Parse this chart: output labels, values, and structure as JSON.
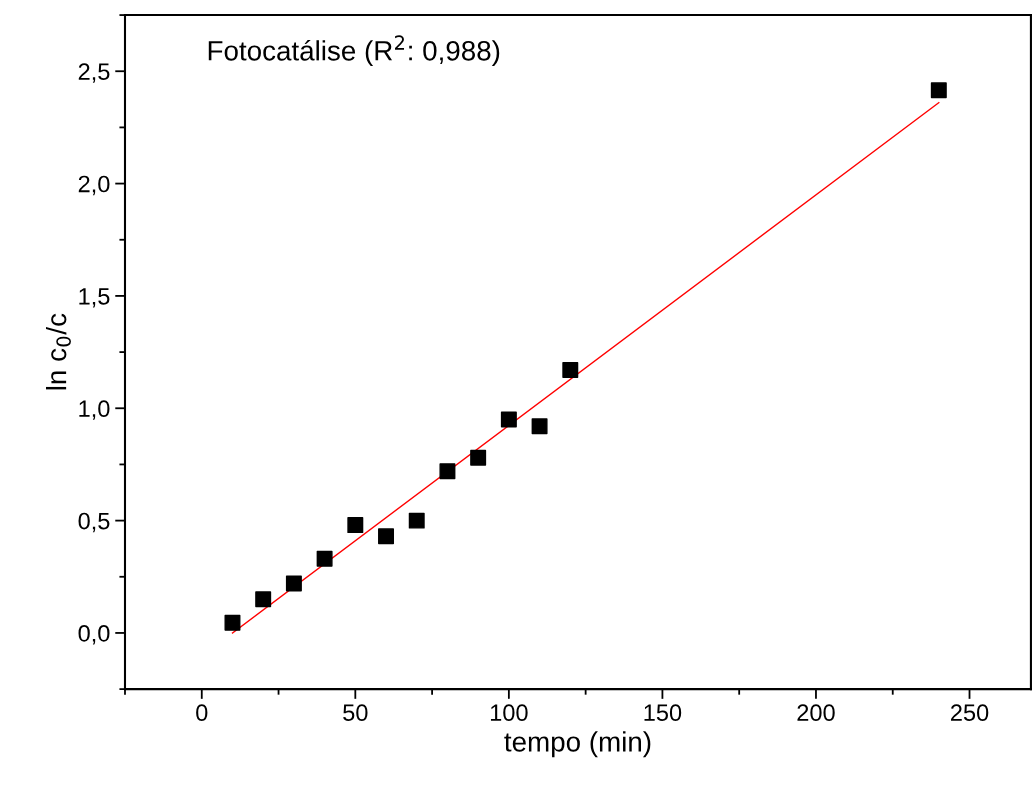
{
  "chart_data": {
    "type": "scatter",
    "xlabel": "tempo (min)",
    "ylabel": "ln c$_{0}$/c",
    "annotations": [
      "Fotocatálise (R$^{2}$: 0,988)"
    ],
    "series": [
      {
        "color": "#000000",
        "marker": "square",
        "x": [
          10,
          20,
          30,
          40,
          50,
          60,
          70,
          80,
          90,
          100,
          110,
          120,
          240
        ],
        "values": [
          0.045,
          0.15,
          0.22,
          0.33,
          0.48,
          0.43,
          0.5,
          0.72,
          0.78,
          0.95,
          0.92,
          1.17,
          2.415
        ]
      },
      {
        "type": "line",
        "color": "#ff0000",
        "marker": "none",
        "x": [
          10,
          240
        ],
        "values": [
          0.0,
          2.36
        ]
      }
    ],
    "xlim": [
      -25,
      270
    ],
    "ylim": [
      -0.25,
      2.75
    ],
    "xticks": [
      0,
      50,
      100,
      150,
      200,
      250
    ],
    "yticks": [
      {
        "value": 0,
        "label": "0,0"
      },
      {
        "value": 0.5,
        "label": "0,5"
      },
      {
        "value": 1,
        "label": "1,0"
      },
      {
        "value": 1.5,
        "label": "1,5"
      },
      {
        "value": 2,
        "label": "2,0"
      },
      {
        "value": 2.5,
        "label": "2,5"
      }
    ],
    "grid": false,
    "legend": false
  }
}
